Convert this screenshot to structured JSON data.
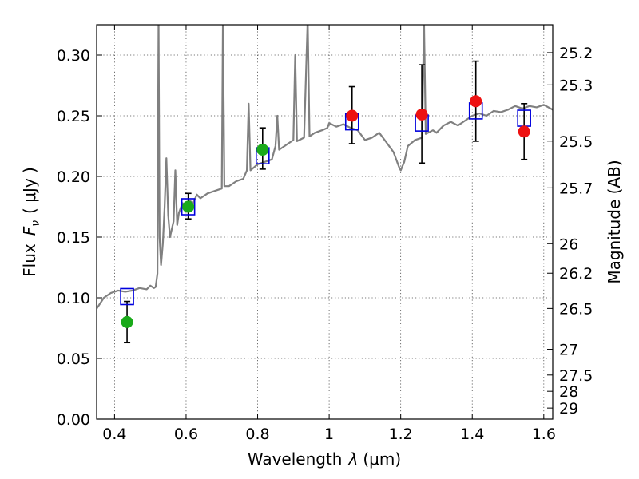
{
  "chart_data": {
    "type": "scatter",
    "xlabel": "Wavelength",
    "xlabel_symbol": "λ",
    "xlabel_unit": "(μm)",
    "ylabel": "Flux",
    "ylabel_symbol": "F",
    "ylabel_subscript": "ν",
    "ylabel_unit": "( μJy )",
    "ylabel_right": "Magnitude (AB)",
    "xlim": [
      0.35,
      1.625
    ],
    "ylim": [
      0.0,
      0.325
    ],
    "grid": true,
    "x_ticks": [
      {
        "value": 0.4,
        "label": "0.4"
      },
      {
        "value": 0.6,
        "label": "0.6"
      },
      {
        "value": 0.8,
        "label": "0.8"
      },
      {
        "value": 1.0,
        "label": "1"
      },
      {
        "value": 1.2,
        "label": "1.2"
      },
      {
        "value": 1.4,
        "label": "1.4"
      },
      {
        "value": 1.6,
        "label": "1.6"
      }
    ],
    "y_ticks": [
      {
        "value": 0.0,
        "label": "0.00"
      },
      {
        "value": 0.05,
        "label": "0.05"
      },
      {
        "value": 0.1,
        "label": "0.10"
      },
      {
        "value": 0.15,
        "label": "0.15"
      },
      {
        "value": 0.2,
        "label": "0.20"
      },
      {
        "value": 0.25,
        "label": "0.25"
      },
      {
        "value": 0.3,
        "label": "0.30"
      }
    ],
    "right_ticks": [
      {
        "mag": 25.2,
        "label": "25.2"
      },
      {
        "mag": 25.3,
        "label": "25.3"
      },
      {
        "mag": 25.5,
        "label": "25.5"
      },
      {
        "mag": 25.7,
        "label": "25.7"
      },
      {
        "mag": 26.0,
        "label": "26"
      },
      {
        "mag": 26.2,
        "label": "26.2"
      },
      {
        "mag": 26.5,
        "label": "26.5"
      },
      {
        "mag": 27.0,
        "label": "27"
      },
      {
        "mag": 27.5,
        "label": "27.5"
      },
      {
        "mag": 28.0,
        "label": "28"
      },
      {
        "mag": 29.0,
        "label": "29"
      }
    ],
    "colors": {
      "spectrum": "#808080",
      "observed_optical": "#1aaa1a",
      "observed_nir": "#ee1111",
      "model_box": "#0000dd",
      "error_bar": "#000000"
    },
    "series": [
      {
        "name": "SED model spectrum",
        "kind": "line",
        "points": [
          [
            0.35,
            0.091
          ],
          [
            0.37,
            0.1
          ],
          [
            0.39,
            0.104
          ],
          [
            0.41,
            0.106
          ],
          [
            0.43,
            0.105
          ],
          [
            0.45,
            0.106
          ],
          [
            0.47,
            0.108
          ],
          [
            0.49,
            0.107
          ],
          [
            0.5,
            0.11
          ],
          [
            0.51,
            0.108
          ],
          [
            0.515,
            0.109
          ],
          [
            0.52,
            0.12
          ],
          [
            0.523,
            0.33
          ],
          [
            0.526,
            0.15
          ],
          [
            0.53,
            0.127
          ],
          [
            0.535,
            0.145
          ],
          [
            0.54,
            0.175
          ],
          [
            0.545,
            0.215
          ],
          [
            0.55,
            0.168
          ],
          [
            0.555,
            0.15
          ],
          [
            0.565,
            0.163
          ],
          [
            0.57,
            0.205
          ],
          [
            0.575,
            0.16
          ],
          [
            0.58,
            0.17
          ],
          [
            0.59,
            0.178
          ],
          [
            0.6,
            0.175
          ],
          [
            0.61,
            0.18
          ],
          [
            0.62,
            0.178
          ],
          [
            0.63,
            0.185
          ],
          [
            0.64,
            0.182
          ],
          [
            0.66,
            0.186
          ],
          [
            0.68,
            0.188
          ],
          [
            0.7,
            0.19
          ],
          [
            0.703,
            0.33
          ],
          [
            0.707,
            0.192
          ],
          [
            0.72,
            0.192
          ],
          [
            0.74,
            0.196
          ],
          [
            0.76,
            0.198
          ],
          [
            0.77,
            0.205
          ],
          [
            0.775,
            0.26
          ],
          [
            0.78,
            0.205
          ],
          [
            0.8,
            0.21
          ],
          [
            0.82,
            0.212
          ],
          [
            0.84,
            0.214
          ],
          [
            0.85,
            0.225
          ],
          [
            0.855,
            0.25
          ],
          [
            0.86,
            0.222
          ],
          [
            0.88,
            0.226
          ],
          [
            0.9,
            0.23
          ],
          [
            0.905,
            0.3
          ],
          [
            0.91,
            0.229
          ],
          [
            0.93,
            0.232
          ],
          [
            0.94,
            0.33
          ],
          [
            0.945,
            0.233
          ],
          [
            0.96,
            0.236
          ],
          [
            0.98,
            0.238
          ],
          [
            0.995,
            0.24
          ],
          [
            1.0,
            0.244
          ],
          [
            1.02,
            0.241
          ],
          [
            1.04,
            0.243
          ],
          [
            1.06,
            0.24
          ],
          [
            1.08,
            0.238
          ],
          [
            1.1,
            0.23
          ],
          [
            1.12,
            0.232
          ],
          [
            1.14,
            0.236
          ],
          [
            1.16,
            0.228
          ],
          [
            1.18,
            0.22
          ],
          [
            1.195,
            0.208
          ],
          [
            1.2,
            0.205
          ],
          [
            1.21,
            0.212
          ],
          [
            1.22,
            0.225
          ],
          [
            1.24,
            0.23
          ],
          [
            1.26,
            0.232
          ],
          [
            1.265,
            0.33
          ],
          [
            1.27,
            0.235
          ],
          [
            1.29,
            0.238
          ],
          [
            1.3,
            0.236
          ],
          [
            1.32,
            0.242
          ],
          [
            1.34,
            0.245
          ],
          [
            1.36,
            0.242
          ],
          [
            1.38,
            0.246
          ],
          [
            1.4,
            0.25
          ],
          [
            1.42,
            0.252
          ],
          [
            1.44,
            0.25
          ],
          [
            1.46,
            0.254
          ],
          [
            1.48,
            0.253
          ],
          [
            1.5,
            0.255
          ],
          [
            1.52,
            0.258
          ],
          [
            1.54,
            0.256
          ],
          [
            1.56,
            0.258
          ],
          [
            1.58,
            0.257
          ],
          [
            1.6,
            0.259
          ],
          [
            1.625,
            0.255
          ]
        ]
      },
      {
        "name": "Observed photometry (optical)",
        "kind": "points",
        "color_key": "observed_optical",
        "points": [
          {
            "x": 0.435,
            "y": 0.08,
            "err_low": 0.063,
            "err_high": 0.097
          },
          {
            "x": 0.606,
            "y": 0.175,
            "err_low": 0.165,
            "err_high": 0.186
          },
          {
            "x": 0.814,
            "y": 0.222,
            "err_low": 0.206,
            "err_high": 0.24
          }
        ]
      },
      {
        "name": "Observed photometry (near-IR)",
        "kind": "points",
        "color_key": "observed_nir",
        "points": [
          {
            "x": 1.064,
            "y": 0.25,
            "err_low": 0.227,
            "err_high": 0.274
          },
          {
            "x": 1.259,
            "y": 0.251,
            "err_low": 0.211,
            "err_high": 0.292
          },
          {
            "x": 1.41,
            "y": 0.262,
            "err_low": 0.229,
            "err_high": 0.295
          },
          {
            "x": 1.545,
            "y": 0.237,
            "err_low": 0.214,
            "err_high": 0.26
          }
        ]
      },
      {
        "name": "Model band fluxes",
        "kind": "boxes",
        "color_key": "model_box",
        "points": [
          {
            "x": 0.435,
            "y": 0.101
          },
          {
            "x": 0.606,
            "y": 0.175
          },
          {
            "x": 0.814,
            "y": 0.217
          },
          {
            "x": 1.064,
            "y": 0.245
          },
          {
            "x": 1.259,
            "y": 0.244
          },
          {
            "x": 1.41,
            "y": 0.254
          },
          {
            "x": 1.545,
            "y": 0.248
          }
        ]
      }
    ]
  }
}
